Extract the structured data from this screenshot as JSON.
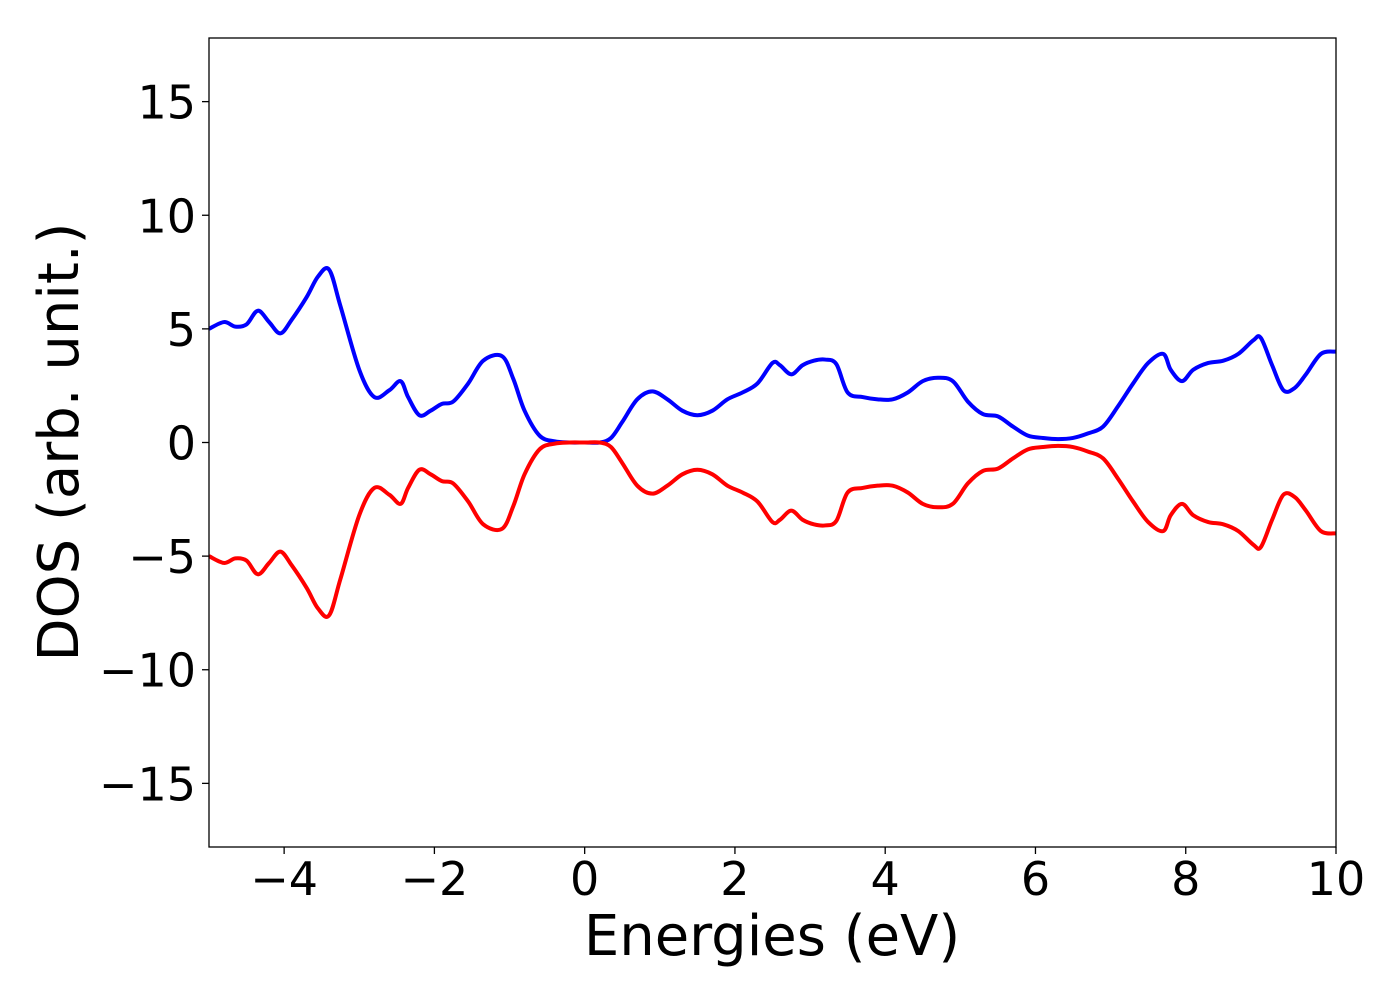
{
  "chart_data": {
    "type": "line",
    "xlabel": "Energies (eV)",
    "ylabel": "DOS (arb. unit.)",
    "xlim": [
      -5,
      10
    ],
    "ylim": [
      -17.8,
      17.8
    ],
    "xticks": [
      -4,
      -2,
      0,
      2,
      4,
      6,
      8,
      10
    ],
    "xtick_labels": [
      "−4",
      "−2",
      "0",
      "2",
      "4",
      "6",
      "8",
      "10"
    ],
    "yticks": [
      15,
      10,
      5,
      0,
      -5,
      -10,
      -15
    ],
    "ytick_labels": [
      "15",
      "10",
      "5",
      "0",
      "−5",
      "−10",
      "−15"
    ],
    "grid": false,
    "series": [
      {
        "color": "#0000ff",
        "x": [
          -5.0,
          -4.8,
          -4.65,
          -4.5,
          -4.35,
          -4.2,
          -4.05,
          -3.9,
          -3.7,
          -3.55,
          -3.4,
          -3.25,
          -3.0,
          -2.8,
          -2.6,
          -2.45,
          -2.35,
          -2.2,
          -2.05,
          -1.9,
          -1.75,
          -1.55,
          -1.35,
          -1.1,
          -0.95,
          -0.8,
          -0.6,
          -0.4,
          -0.2,
          0.0,
          0.2,
          0.35,
          0.5,
          0.7,
          0.9,
          1.1,
          1.3,
          1.5,
          1.7,
          1.9,
          2.1,
          2.3,
          2.5,
          2.6,
          2.75,
          2.9,
          3.05,
          3.2,
          3.35,
          3.5,
          3.7,
          3.9,
          4.1,
          4.3,
          4.5,
          4.7,
          4.9,
          5.1,
          5.3,
          5.5,
          5.7,
          5.9,
          6.1,
          6.3,
          6.5,
          6.7,
          6.9,
          7.1,
          7.3,
          7.5,
          7.7,
          7.8,
          7.95,
          8.1,
          8.3,
          8.5,
          8.7,
          8.9,
          9.0,
          9.15,
          9.3,
          9.45,
          9.6,
          9.8,
          10.0
        ],
        "y": [
          5.0,
          5.3,
          5.1,
          5.2,
          5.8,
          5.3,
          4.8,
          5.4,
          6.4,
          7.3,
          7.6,
          6.0,
          3.2,
          2.0,
          2.3,
          2.7,
          2.0,
          1.2,
          1.4,
          1.7,
          1.8,
          2.6,
          3.6,
          3.8,
          2.8,
          1.4,
          0.3,
          0.05,
          0.0,
          0.0,
          0.0,
          0.2,
          0.9,
          1.9,
          2.25,
          1.9,
          1.4,
          1.2,
          1.4,
          1.9,
          2.2,
          2.6,
          3.5,
          3.4,
          3.0,
          3.4,
          3.6,
          3.65,
          3.45,
          2.2,
          2.0,
          1.9,
          1.9,
          2.2,
          2.7,
          2.85,
          2.7,
          1.8,
          1.25,
          1.15,
          0.7,
          0.3,
          0.2,
          0.15,
          0.2,
          0.4,
          0.7,
          1.6,
          2.6,
          3.5,
          3.9,
          3.2,
          2.7,
          3.2,
          3.5,
          3.6,
          3.9,
          4.5,
          4.6,
          3.4,
          2.3,
          2.4,
          3.0,
          3.9,
          4.0
        ]
      },
      {
        "color": "#ff0000",
        "x": [
          -5.0,
          -4.8,
          -4.65,
          -4.5,
          -4.35,
          -4.2,
          -4.05,
          -3.9,
          -3.7,
          -3.55,
          -3.4,
          -3.25,
          -3.0,
          -2.8,
          -2.6,
          -2.45,
          -2.35,
          -2.2,
          -2.05,
          -1.9,
          -1.75,
          -1.55,
          -1.35,
          -1.1,
          -0.95,
          -0.8,
          -0.6,
          -0.4,
          -0.2,
          0.0,
          0.2,
          0.35,
          0.5,
          0.7,
          0.9,
          1.1,
          1.3,
          1.5,
          1.7,
          1.9,
          2.1,
          2.3,
          2.5,
          2.6,
          2.75,
          2.9,
          3.05,
          3.2,
          3.35,
          3.5,
          3.7,
          3.9,
          4.1,
          4.3,
          4.5,
          4.7,
          4.9,
          5.1,
          5.3,
          5.5,
          5.7,
          5.9,
          6.1,
          6.3,
          6.5,
          6.7,
          6.9,
          7.1,
          7.3,
          7.5,
          7.7,
          7.8,
          7.95,
          8.1,
          8.3,
          8.5,
          8.7,
          8.9,
          9.0,
          9.15,
          9.3,
          9.45,
          9.6,
          9.8,
          10.0
        ],
        "y": [
          -5.0,
          -5.3,
          -5.1,
          -5.2,
          -5.8,
          -5.3,
          -4.8,
          -5.4,
          -6.4,
          -7.3,
          -7.6,
          -6.0,
          -3.2,
          -2.0,
          -2.3,
          -2.7,
          -2.0,
          -1.2,
          -1.4,
          -1.7,
          -1.8,
          -2.6,
          -3.6,
          -3.8,
          -2.8,
          -1.4,
          -0.3,
          -0.05,
          0.0,
          0.0,
          0.0,
          -0.2,
          -0.9,
          -1.9,
          -2.25,
          -1.9,
          -1.4,
          -1.2,
          -1.4,
          -1.9,
          -2.2,
          -2.6,
          -3.5,
          -3.4,
          -3.0,
          -3.4,
          -3.6,
          -3.65,
          -3.45,
          -2.2,
          -2.0,
          -1.9,
          -1.9,
          -2.2,
          -2.7,
          -2.85,
          -2.7,
          -1.8,
          -1.25,
          -1.15,
          -0.7,
          -0.3,
          -0.2,
          -0.15,
          -0.2,
          -0.4,
          -0.7,
          -1.6,
          -2.6,
          -3.5,
          -3.9,
          -3.2,
          -2.7,
          -3.2,
          -3.5,
          -3.6,
          -3.9,
          -4.5,
          -4.6,
          -3.4,
          -2.3,
          -2.4,
          -3.0,
          -3.9,
          -4.0
        ]
      }
    ]
  }
}
